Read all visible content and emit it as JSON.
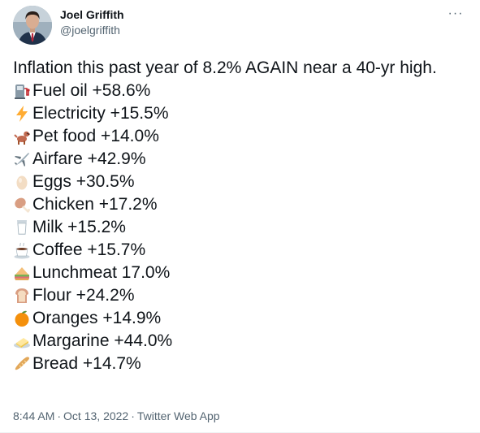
{
  "author": {
    "display_name": "Joel Griffith",
    "handle": "@joelgriffith"
  },
  "more_label": "···",
  "tweet": {
    "intro": "Inflation this past year of 8.2% AGAIN near a 40-yr high.",
    "items": [
      {
        "icon": "fuel-pump-icon",
        "text": "Fuel oil +58.6%"
      },
      {
        "icon": "lightning-icon",
        "text": "Electricity +15.5%"
      },
      {
        "icon": "dog-icon",
        "text": "Pet food +14.0%"
      },
      {
        "icon": "airplane-icon",
        "text": "Airfare +42.9%"
      },
      {
        "icon": "egg-icon",
        "text": "Eggs +30.5%"
      },
      {
        "icon": "poultry-leg-icon",
        "text": "Chicken +17.2%"
      },
      {
        "icon": "milk-glass-icon",
        "text": "Milk +15.2%"
      },
      {
        "icon": "coffee-icon",
        "text": "Coffee +15.7%"
      },
      {
        "icon": "sandwich-icon",
        "text": "Lunchmeat 17.0%"
      },
      {
        "icon": "bread-slice-icon",
        "text": "Flour +24.2%"
      },
      {
        "icon": "orange-icon",
        "text": "Oranges +14.9%"
      },
      {
        "icon": "butter-icon",
        "text": "Margarine +44.0%"
      },
      {
        "icon": "baguette-icon",
        "text": "Bread +14.7%"
      }
    ]
  },
  "footer": {
    "time": "8:44 AM",
    "date": "Oct 13, 2022",
    "source": "Twitter Web App",
    "separator": "·"
  },
  "colors": {
    "text_primary": "#0f1419",
    "text_secondary": "#536471"
  }
}
